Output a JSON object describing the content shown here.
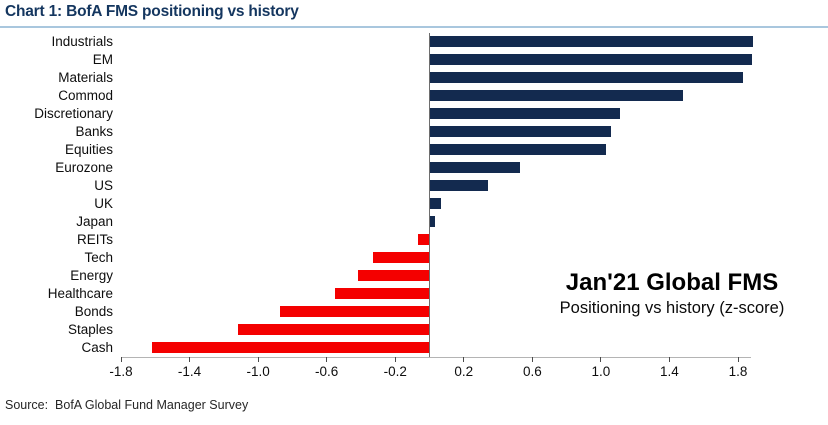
{
  "title": "Chart 1: BofA FMS positioning vs history",
  "source": "Source:  BofA Global Fund Manager Survey",
  "annotation": {
    "line1": "Jan'21 Global FMS",
    "line2": "Positioning vs history (z-score)"
  },
  "colors": {
    "positive_bar": "#132a4f",
    "negative_bar": "#f40000",
    "title_text": "#14365f",
    "title_rule": "#a9c7de",
    "axis_line": "#b4b4b4",
    "zero_line": "#6e6e6e"
  },
  "chart_data": {
    "type": "bar",
    "orientation": "horizontal",
    "title": "Jan'21 Global FMS",
    "subtitle": "Positioning vs history (z-score)",
    "xlabel": "",
    "ylabel": "",
    "xlim": [
      -1.8,
      1.8
    ],
    "xticks": [
      -1.8,
      -1.4,
      -1.0,
      -0.6,
      -0.2,
      0.2,
      0.6,
      1.0,
      1.4,
      1.8
    ],
    "xtick_labels": [
      "-1.8",
      "-1.4",
      "-1.0",
      "-0.6",
      "-0.2",
      "0.2",
      "0.6",
      "1.0",
      "1.4",
      "1.8"
    ],
    "grid": false,
    "legend": "none",
    "categories": [
      "Industrials",
      "EM",
      "Materials",
      "Commod",
      "Discretionary",
      "Banks",
      "Equities",
      "Eurozone",
      "US",
      "UK",
      "Japan",
      "REITs",
      "Tech",
      "Energy",
      "Healthcare",
      "Bonds",
      "Staples",
      "Cash"
    ],
    "values": [
      1.89,
      1.88,
      1.83,
      1.48,
      1.11,
      1.06,
      1.03,
      0.53,
      0.34,
      0.07,
      0.03,
      -0.07,
      -0.33,
      -0.42,
      -0.55,
      -0.87,
      -1.12,
      -1.62
    ]
  }
}
